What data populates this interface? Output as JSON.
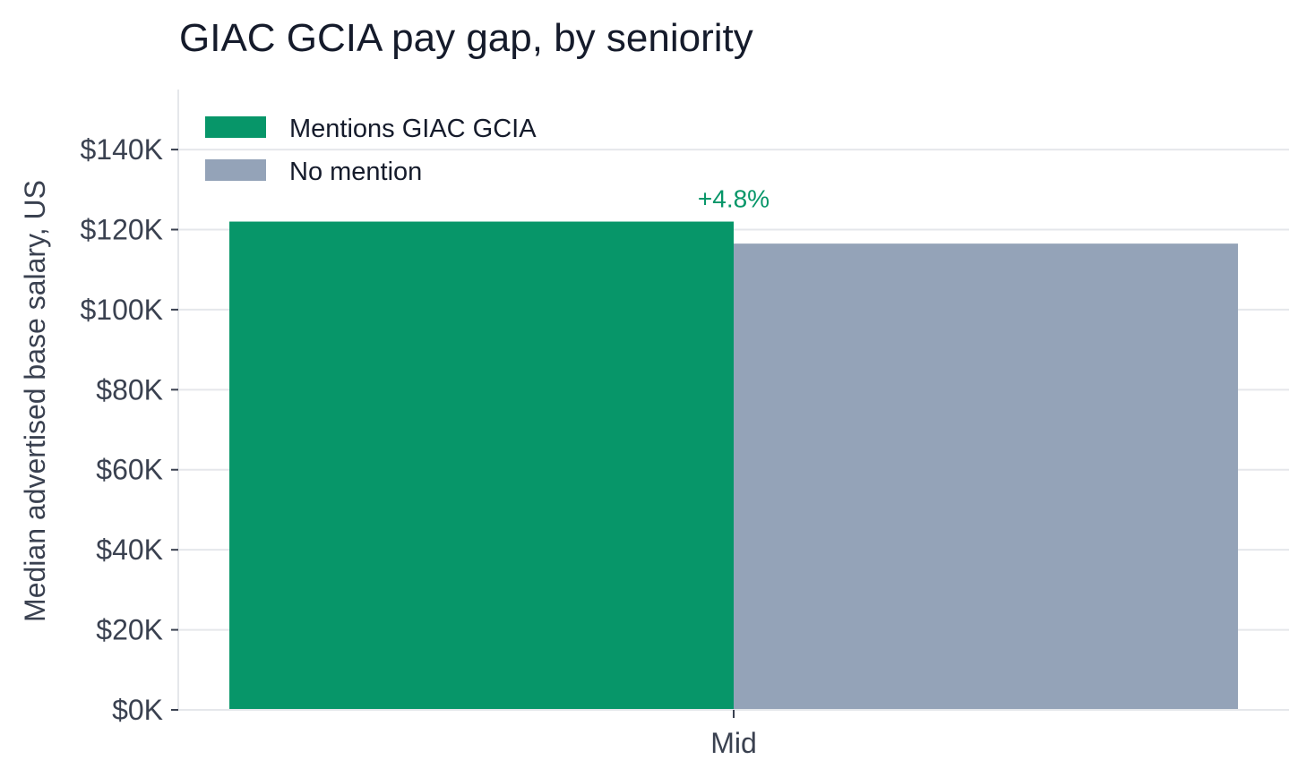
{
  "chart_data": {
    "type": "bar",
    "title": "GIAC GCIA pay gap, by seniority",
    "xlabel": "",
    "ylabel": "Median advertised base salary, US",
    "categories": [
      "Mid"
    ],
    "series": [
      {
        "name": "Mentions GIAC GCIA",
        "values": [
          122000
        ],
        "color": "#079669"
      },
      {
        "name": "No mention",
        "values": [
          116500
        ],
        "color": "#94a3b8"
      }
    ],
    "annotations": [
      {
        "category": "Mid",
        "text": "+4.8%",
        "color": "#079669"
      }
    ],
    "ylim": [
      0,
      155000
    ],
    "yticks": [
      0,
      20000,
      40000,
      60000,
      80000,
      100000,
      120000,
      140000
    ],
    "ytick_labels": [
      "$0K",
      "$20K",
      "$40K",
      "$60K",
      "$80K",
      "$100K",
      "$120K",
      "$140K"
    ],
    "grid": "horizontal",
    "legend_position": "top-left"
  }
}
